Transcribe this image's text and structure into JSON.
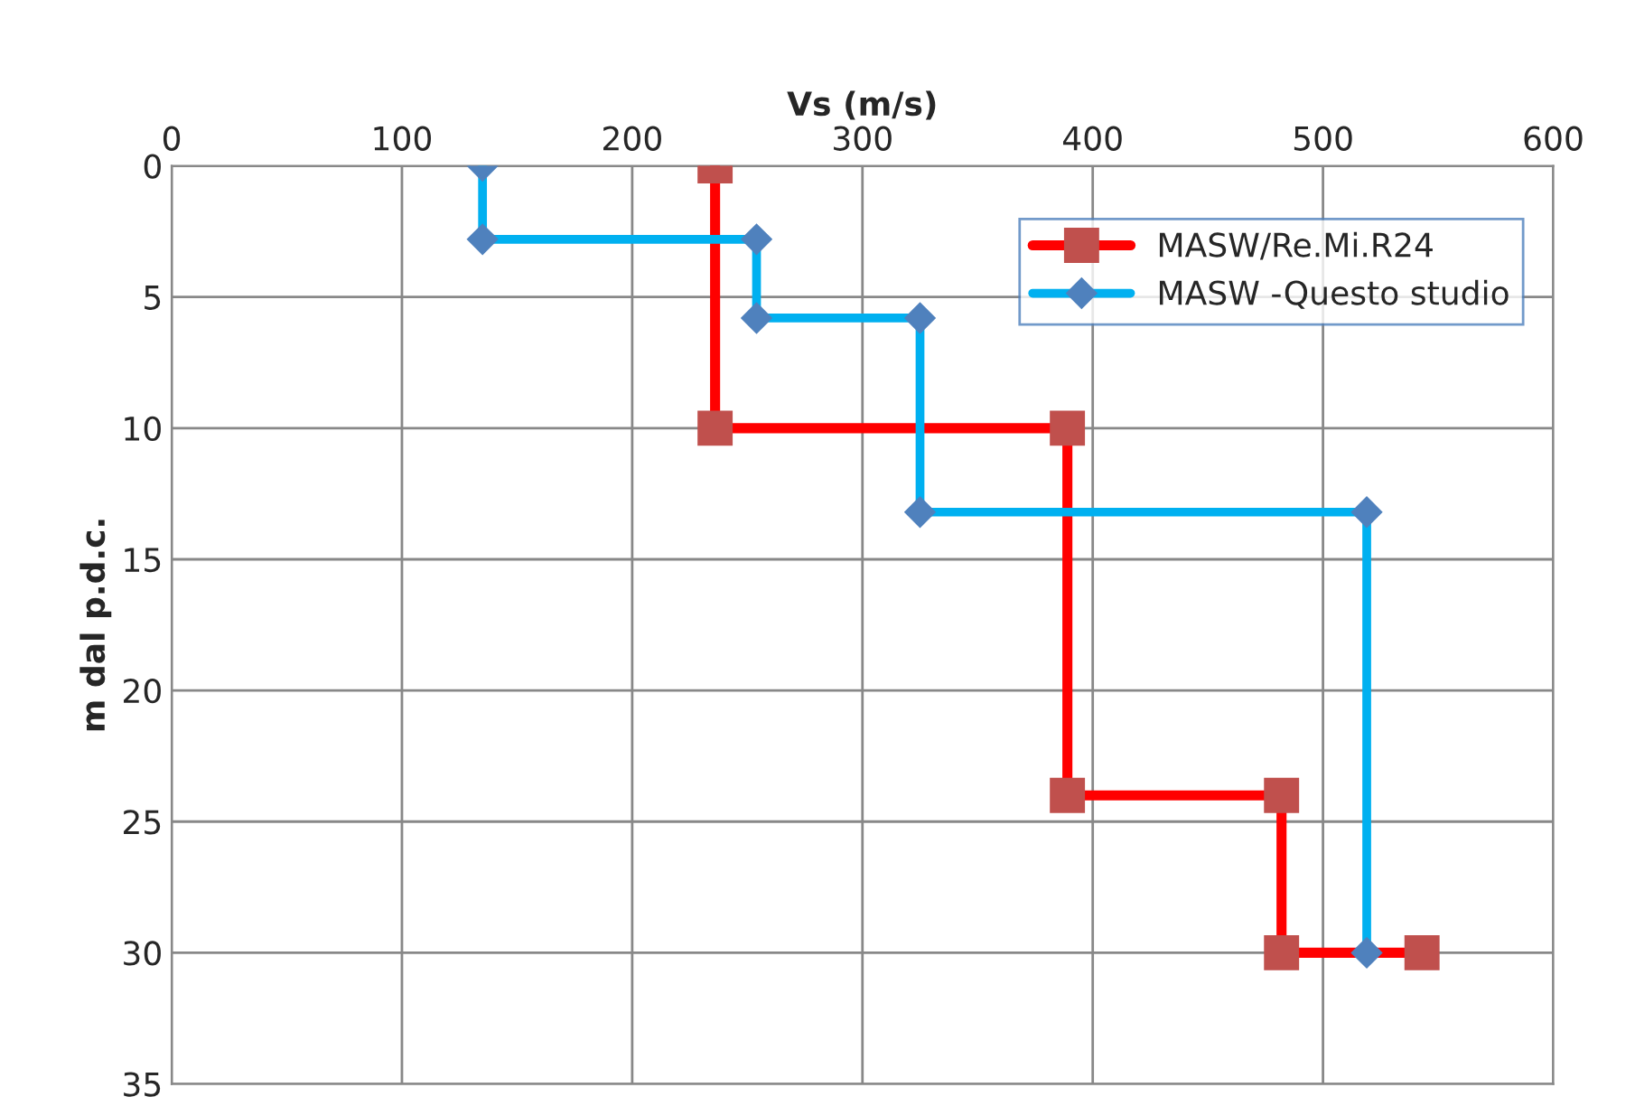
{
  "chart_data": {
    "type": "line",
    "xlabel": "Vs (m/s)",
    "ylabel": "m dal p.d.c.",
    "xlim": [
      0,
      600
    ],
    "xticks": [
      0,
      100,
      200,
      300,
      400,
      500,
      600
    ],
    "ylim": [
      35,
      0
    ],
    "yticks": [
      0,
      5,
      10,
      15,
      20,
      25,
      30,
      35
    ],
    "grid": true,
    "legend": "top right",
    "line_style": "solid",
    "series": [
      {
        "name": "MASW/Re.Mi.R24",
        "color": "#ff0000",
        "marker": "square",
        "x": [
          236,
          236,
          389,
          389,
          482,
          482,
          543
        ],
        "values": [
          0,
          10,
          10,
          24,
          24,
          30,
          30
        ]
      },
      {
        "name": "MASW -Questo studio",
        "color": "#00b0f0",
        "marker": "diamond",
        "x": [
          135,
          135,
          254,
          254,
          325,
          325,
          519,
          519
        ],
        "values": [
          0,
          2.8,
          2.8,
          5.8,
          5.8,
          13.2,
          13.2,
          30
        ]
      }
    ]
  }
}
